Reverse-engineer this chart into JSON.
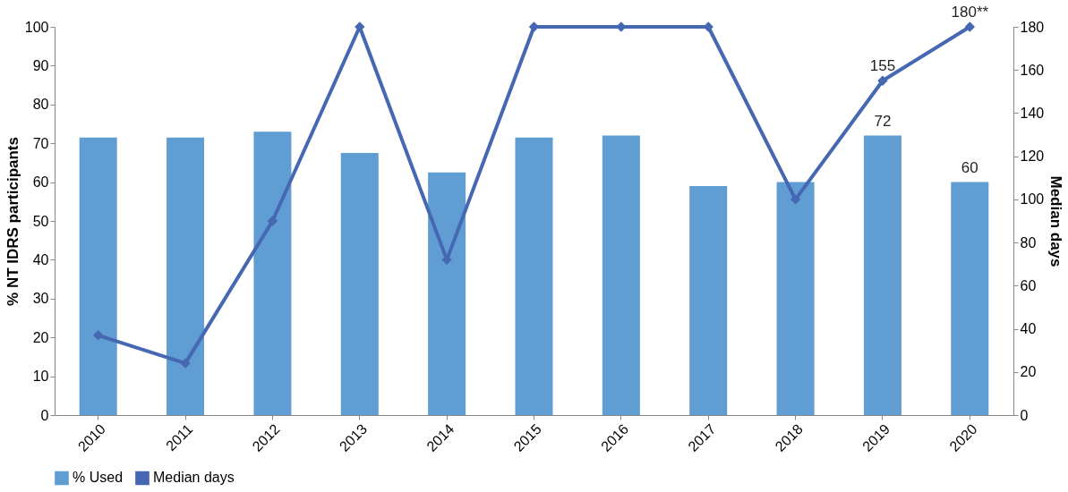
{
  "chart_data": {
    "type": "bar",
    "ylabel": "% NT IDRS participants",
    "y2label": "Median days",
    "categories": [
      "2010",
      "2011",
      "2012",
      "2013",
      "2014",
      "2015",
      "2016",
      "2017",
      "2018",
      "2019",
      "2020"
    ],
    "series": [
      {
        "name": "% Used",
        "color": "#5f9dd3",
        "values": [
          71.5,
          71.5,
          73,
          67.5,
          62.5,
          71.5,
          72,
          59,
          60,
          72,
          60
        ],
        "value_labels": [
          null,
          null,
          null,
          null,
          null,
          null,
          null,
          null,
          null,
          "72",
          "60"
        ]
      },
      {
        "name": "Median days",
        "type": "line",
        "axis": "y2",
        "color": "#4668b2",
        "marker": "diamond",
        "line_style": "solid",
        "values": [
          37,
          24,
          90,
          180,
          72,
          180,
          180,
          180,
          100,
          155,
          180
        ],
        "value_labels": [
          null,
          null,
          null,
          null,
          null,
          null,
          null,
          null,
          null,
          "155",
          "180**"
        ]
      }
    ],
    "ylim": [
      0,
      100
    ],
    "yticks": [
      0,
      10,
      20,
      30,
      40,
      50,
      60,
      70,
      80,
      90,
      100
    ],
    "y2lim": [
      0,
      180
    ],
    "y2ticks": [
      0,
      20,
      40,
      60,
      80,
      100,
      120,
      140,
      160,
      180
    ],
    "grid": false,
    "legend": "bottom"
  }
}
